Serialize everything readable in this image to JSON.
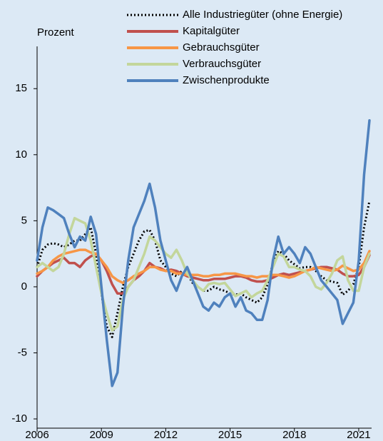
{
  "chart_data": {
    "type": "line",
    "y_label": "Prozent",
    "x": [
      2006,
      2006.25,
      2006.5,
      2006.75,
      2007,
      2007.25,
      2007.5,
      2007.75,
      2008,
      2008.25,
      2008.5,
      2008.75,
      2009,
      2009.25,
      2009.5,
      2009.75,
      2010,
      2010.25,
      2010.5,
      2010.75,
      2011,
      2011.25,
      2011.5,
      2011.75,
      2012,
      2012.25,
      2012.5,
      2012.75,
      2013,
      2013.25,
      2013.5,
      2013.75,
      2014,
      2014.25,
      2014.5,
      2014.75,
      2015,
      2015.25,
      2015.5,
      2015.75,
      2016,
      2016.25,
      2016.5,
      2016.75,
      2017,
      2017.25,
      2017.5,
      2017.75,
      2018,
      2018.25,
      2018.5,
      2018.75,
      2019,
      2019.25,
      2019.5,
      2019.75,
      2020,
      2020.25,
      2020.5,
      2020.75,
      2021,
      2021.25,
      2021.5
    ],
    "series": [
      {
        "name": "Alle Industriegüter (ohne Energie)",
        "color": "#000000",
        "linestyle": "dotted",
        "values": [
          1.5,
          2.8,
          3.2,
          3.3,
          3.2,
          3.0,
          3.2,
          3.5,
          3.5,
          4.0,
          4.5,
          2.5,
          -0.5,
          -3,
          -3.8,
          -2,
          0,
          1.5,
          2.5,
          3.5,
          4.2,
          4.3,
          3.5,
          2.0,
          1.5,
          1.0,
          0.8,
          1.2,
          1.0,
          0.3,
          0,
          -0.3,
          -0.3,
          0,
          -0.2,
          -0.3,
          -0.5,
          -0.6,
          -0.5,
          -0.8,
          -1.0,
          -1.2,
          -0.8,
          0.2,
          1.8,
          2.7,
          2.5,
          2.0,
          1.7,
          1.4,
          1.5,
          1.5,
          1.2,
          0.8,
          0.5,
          0.4,
          0.3,
          -0.6,
          -0.3,
          0.2,
          1.5,
          4.5,
          6.5
        ]
      },
      {
        "name": "Kapitalgüter",
        "color": "#c0504d",
        "linestyle": "solid",
        "values": [
          0.8,
          1.2,
          1.5,
          1.8,
          2.0,
          2.2,
          1.8,
          1.8,
          1.5,
          2.0,
          2.3,
          2.5,
          2.0,
          1.2,
          0.2,
          -0.5,
          -0.5,
          0,
          0.5,
          0.8,
          1.2,
          1.8,
          1.5,
          1.4,
          1.2,
          1.3,
          1.2,
          1.0,
          0.8,
          0.7,
          0.6,
          0.5,
          0.5,
          0.6,
          0.6,
          0.6,
          0.7,
          0.8,
          0.8,
          0.7,
          0.5,
          0.4,
          0.4,
          0.5,
          0.7,
          0.9,
          1.0,
          0.9,
          1.0,
          1.1,
          1.2,
          1.3,
          1.4,
          1.5,
          1.5,
          1.4,
          1.3,
          1.0,
          0.8,
          0.8,
          0.9,
          1.5,
          2.4
        ]
      },
      {
        "name": "Gebrauchsgüter",
        "color": "#f79646",
        "linestyle": "solid",
        "values": [
          1.0,
          1.2,
          1.5,
          2.0,
          2.3,
          2.5,
          2.6,
          2.7,
          2.8,
          2.8,
          2.6,
          2.5,
          2.0,
          1.5,
          0.8,
          0.5,
          0.3,
          0.5,
          0.8,
          1.0,
          1.2,
          1.5,
          1.5,
          1.3,
          1.2,
          1.2,
          1.0,
          1.0,
          0.9,
          0.9,
          0.9,
          0.8,
          0.8,
          0.9,
          0.9,
          1.0,
          1.0,
          1.0,
          0.9,
          0.8,
          0.8,
          0.7,
          0.8,
          0.8,
          0.9,
          0.9,
          0.8,
          0.7,
          0.8,
          1.0,
          1.2,
          1.3,
          1.5,
          1.4,
          1.3,
          1.2,
          1.3,
          1.6,
          1.4,
          1.2,
          1.3,
          1.8,
          2.7
        ]
      },
      {
        "name": "Verbrauchsgüter",
        "color": "#c3d69b",
        "linestyle": "solid",
        "values": [
          1.5,
          1.8,
          1.5,
          1.2,
          1.5,
          2.5,
          4.0,
          5.2,
          5.0,
          4.8,
          3.5,
          1.5,
          -0.5,
          -2,
          -3.3,
          -3.0,
          -1.0,
          0,
          0.5,
          1.5,
          2.5,
          3.8,
          3.5,
          3.0,
          2.5,
          2.2,
          2.8,
          2.0,
          1.0,
          0.5,
          0,
          -0.3,
          0.2,
          0.3,
          0.2,
          0.3,
          -0.2,
          -0.7,
          -0.5,
          -0.3,
          -0.8,
          -0.5,
          -0.3,
          0.5,
          1.5,
          2.5,
          2.3,
          1.5,
          1.5,
          1.3,
          1.2,
          0.8,
          0,
          -0.2,
          0.3,
          1.0,
          2.0,
          2.3,
          0.5,
          -0.3,
          -0.3,
          1.5,
          2.5
        ]
      },
      {
        "name": "Zwischenprodukte",
        "color": "#4f81bd",
        "linestyle": "solid",
        "values": [
          2.0,
          4.5,
          6.0,
          5.8,
          5.5,
          5.2,
          4.0,
          3.0,
          3.8,
          3.5,
          5.3,
          4.0,
          0,
          -4,
          -7.5,
          -6.5,
          -1.5,
          2,
          4.5,
          5.5,
          6.5,
          7.8,
          6.0,
          3.5,
          2.0,
          0.5,
          -0.3,
          0.8,
          1.5,
          0.5,
          -0.5,
          -1.5,
          -1.8,
          -1.2,
          -1.5,
          -0.8,
          -0.5,
          -1.5,
          -0.8,
          -1.8,
          -2.0,
          -2.5,
          -2.5,
          -1.0,
          2.0,
          3.8,
          2.5,
          3.0,
          2.5,
          1.8,
          3.0,
          2.5,
          1.5,
          0.5,
          0,
          -0.5,
          -1.0,
          -2.8,
          -2.0,
          -1.2,
          2.0,
          8.5,
          12.6
        ]
      }
    ],
    "xlim": [
      2006,
      2021.6
    ],
    "xticks": [
      2006,
      2009,
      2012,
      2015,
      2018,
      2021
    ],
    "ylim": [
      -10.7,
      18.2
    ],
    "yticks": [
      -10,
      -5,
      0,
      5,
      10,
      15
    ],
    "grid": false,
    "legend": "upper right"
  }
}
